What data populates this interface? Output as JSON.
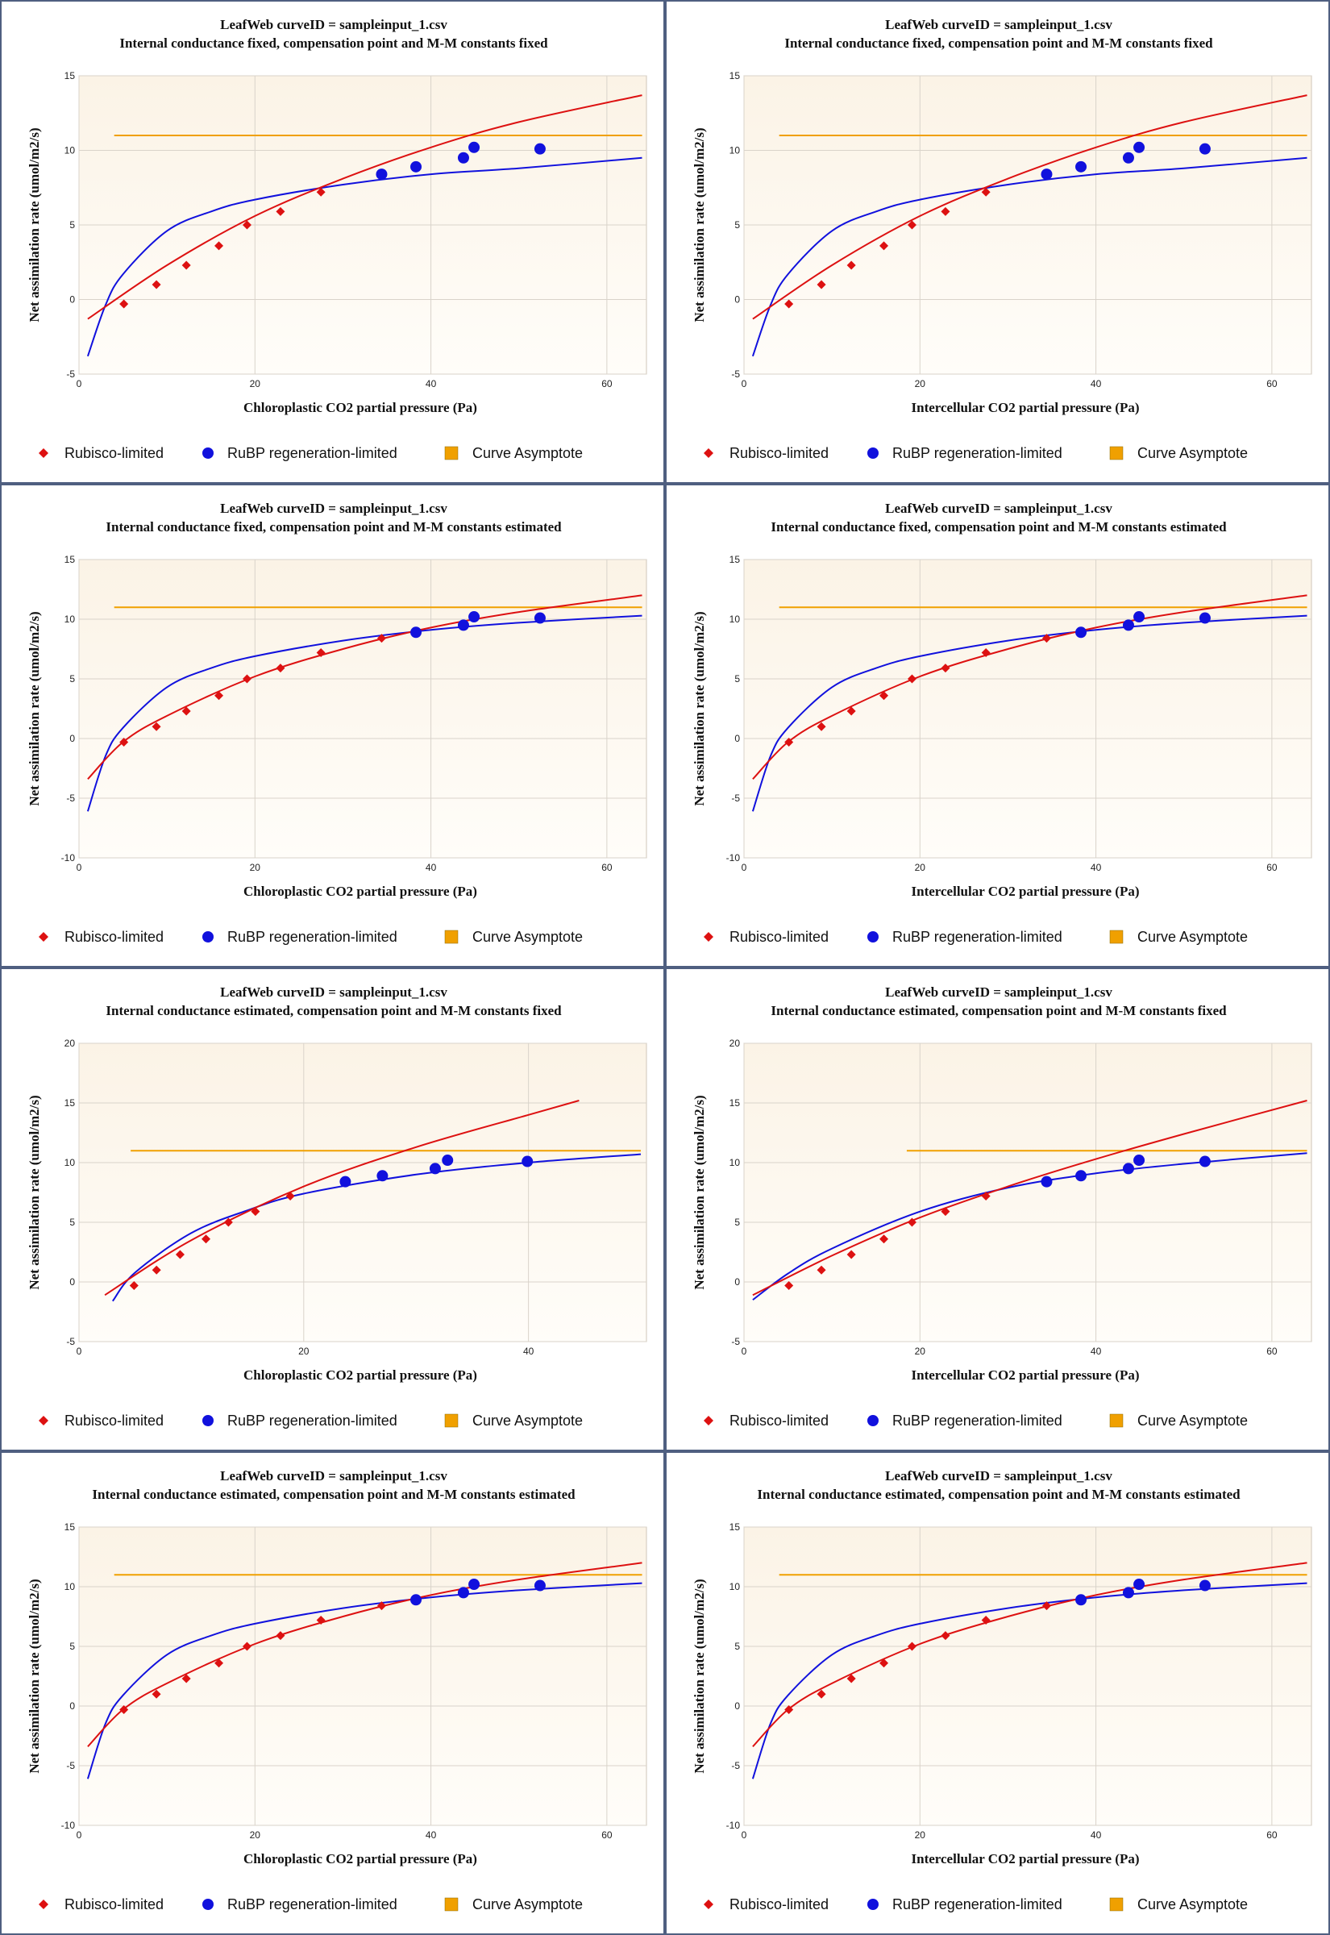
{
  "legend": {
    "rubisco": "Rubisco-limited",
    "rubp": "RuBP regeneration-limited",
    "asymptote": "Curve Asymptote"
  },
  "colors": {
    "rubisco": "#dd1111",
    "rubp": "#1111dd",
    "asymptote": "#f0a000",
    "plot_bg_top": "#fbf3e6",
    "plot_bg_bottom": "#fffdf9",
    "border": "#4f5f80"
  },
  "chart_data": [
    {
      "type": "scatter",
      "title": "LeafWeb curveID = sampleinput_1.csv",
      "subtitle": "Internal conductance fixed, compensation point and M-M constants fixed",
      "xlabel": "Chloroplastic CO2 partial pressure (Pa)",
      "ylabel": "Net assimilation rate (umol/m2/s)",
      "xlim": [
        0,
        64.5
      ],
      "ylim": [
        -5,
        15
      ],
      "xticks": [
        0,
        20,
        40,
        60
      ],
      "yticks": [
        -5,
        0,
        5,
        10,
        15
      ],
      "grid": true,
      "legend_position": "bottom",
      "series": [
        {
          "name": "Rubisco-limited",
          "x": [
            5.1,
            8.8,
            12.2,
            15.9,
            19.1,
            22.9,
            27.5
          ],
          "y": [
            -0.3,
            1.0,
            2.3,
            3.6,
            5.0,
            5.9,
            7.2
          ]
        },
        {
          "name": "RuBP regeneration-limited",
          "x": [
            34.4,
            38.3,
            43.7,
            44.9,
            52.4
          ],
          "y": [
            8.4,
            8.9,
            9.5,
            10.2,
            10.1
          ]
        }
      ],
      "rubisco_curve": {
        "x": [
          1,
          10,
          20,
          30,
          40,
          50,
          64
        ],
        "y": [
          -1.3,
          2.3,
          5.6,
          8.1,
          10.2,
          11.9,
          13.7
        ]
      },
      "rubp_curve": {
        "x": [
          1,
          3,
          5,
          10,
          15,
          20,
          30,
          40,
          50,
          64
        ],
        "y": [
          -3.8,
          -0.4,
          1.7,
          4.6,
          5.9,
          6.7,
          7.7,
          8.4,
          8.8,
          9.5
        ]
      },
      "asymptote": {
        "x": [
          4,
          64
        ],
        "y": 11
      }
    },
    {
      "type": "scatter",
      "title": "LeafWeb curveID = sampleinput_1.csv",
      "subtitle": "Internal conductance fixed, compensation point and M-M constants fixed",
      "xlabel": "Intercellular CO2 partial pressure (Pa)",
      "ylabel": "Net assimilation rate (umol/m2/s)",
      "xlim": [
        0,
        64.5
      ],
      "ylim": [
        -5,
        15
      ],
      "xticks": [
        0,
        20,
        40,
        60
      ],
      "yticks": [
        -5,
        0,
        5,
        10,
        15
      ],
      "grid": true,
      "legend_position": "bottom",
      "series": [
        {
          "name": "Rubisco-limited",
          "x": [
            5.1,
            8.8,
            12.2,
            15.9,
            19.1,
            22.9,
            27.5
          ],
          "y": [
            -0.3,
            1.0,
            2.3,
            3.6,
            5.0,
            5.9,
            7.2
          ]
        },
        {
          "name": "RuBP regeneration-limited",
          "x": [
            34.4,
            38.3,
            43.7,
            44.9,
            52.4
          ],
          "y": [
            8.4,
            8.9,
            9.5,
            10.2,
            10.1
          ]
        }
      ],
      "rubisco_curve": {
        "x": [
          1,
          10,
          20,
          30,
          40,
          50,
          64
        ],
        "y": [
          -1.3,
          2.3,
          5.6,
          8.1,
          10.2,
          11.9,
          13.7
        ]
      },
      "rubp_curve": {
        "x": [
          1,
          3,
          5,
          10,
          15,
          20,
          30,
          40,
          50,
          64
        ],
        "y": [
          -3.8,
          -0.4,
          1.7,
          4.6,
          5.9,
          6.7,
          7.7,
          8.4,
          8.8,
          9.5
        ]
      },
      "asymptote": {
        "x": [
          4,
          64
        ],
        "y": 11
      }
    },
    {
      "type": "scatter",
      "title": "LeafWeb curveID = sampleinput_1.csv",
      "subtitle": "Internal conductance fixed, compensation point and M-M constants estimated",
      "xlabel": "Chloroplastic CO2 partial pressure (Pa)",
      "ylabel": "Net assimilation rate (umol/m2/s)",
      "xlim": [
        0,
        64.5
      ],
      "ylim": [
        -10,
        15
      ],
      "xticks": [
        0,
        20,
        40,
        60
      ],
      "yticks": [
        -10,
        -5,
        0,
        5,
        10,
        15
      ],
      "grid": true,
      "legend_position": "bottom",
      "series": [
        {
          "name": "Rubisco-limited",
          "x": [
            5.1,
            8.8,
            12.2,
            15.9,
            19.1,
            22.9,
            27.5,
            34.4
          ],
          "y": [
            -0.3,
            1.0,
            2.3,
            3.6,
            5.0,
            5.9,
            7.2,
            8.4
          ]
        },
        {
          "name": "RuBP regeneration-limited",
          "x": [
            38.3,
            43.7,
            44.9,
            52.4
          ],
          "y": [
            8.9,
            9.5,
            10.2,
            10.1
          ]
        }
      ],
      "rubisco_curve": {
        "x": [
          1,
          5,
          10,
          20,
          30,
          40,
          50,
          64
        ],
        "y": [
          -3.4,
          -0.3,
          1.9,
          5.2,
          7.5,
          9.3,
          10.6,
          12.0
        ]
      },
      "rubp_curve": {
        "x": [
          1,
          3,
          5,
          10,
          15,
          20,
          30,
          40,
          50,
          64
        ],
        "y": [
          -6.1,
          -1.5,
          0.9,
          4.3,
          5.9,
          6.9,
          8.2,
          9.1,
          9.7,
          10.3
        ]
      },
      "asymptote": {
        "x": [
          4,
          64
        ],
        "y": 11
      }
    },
    {
      "type": "scatter",
      "title": "LeafWeb curveID = sampleinput_1.csv",
      "subtitle": "Internal conductance fixed, compensation point and M-M constants estimated",
      "xlabel": "Intercellular CO2 partial pressure (Pa)",
      "ylabel": "Net assimilation rate (umol/m2/s)",
      "xlim": [
        0,
        64.5
      ],
      "ylim": [
        -10,
        15
      ],
      "xticks": [
        0,
        20,
        40,
        60
      ],
      "yticks": [
        -10,
        -5,
        0,
        5,
        10,
        15
      ],
      "grid": true,
      "legend_position": "bottom",
      "series": [
        {
          "name": "Rubisco-limited",
          "x": [
            5.1,
            8.8,
            12.2,
            15.9,
            19.1,
            22.9,
            27.5,
            34.4
          ],
          "y": [
            -0.3,
            1.0,
            2.3,
            3.6,
            5.0,
            5.9,
            7.2,
            8.4
          ]
        },
        {
          "name": "RuBP regeneration-limited",
          "x": [
            38.3,
            43.7,
            44.9,
            52.4
          ],
          "y": [
            8.9,
            9.5,
            10.2,
            10.1
          ]
        }
      ],
      "rubisco_curve": {
        "x": [
          1,
          5,
          10,
          20,
          30,
          40,
          50,
          64
        ],
        "y": [
          -3.4,
          -0.3,
          1.9,
          5.2,
          7.5,
          9.3,
          10.6,
          12.0
        ]
      },
      "rubp_curve": {
        "x": [
          1,
          3,
          5,
          10,
          15,
          20,
          30,
          40,
          50,
          64
        ],
        "y": [
          -6.1,
          -1.5,
          0.9,
          4.3,
          5.9,
          6.9,
          8.2,
          9.1,
          9.7,
          10.3
        ]
      },
      "asymptote": {
        "x": [
          4,
          64
        ],
        "y": 11
      }
    },
    {
      "type": "scatter",
      "title": "LeafWeb curveID = sampleinput_1.csv",
      "subtitle": "Internal conductance estimated, compensation point and M-M constants fixed",
      "xlabel": "Chloroplastic CO2 partial pressure (Pa)",
      "ylabel": "Net assimilation rate (umol/m2/s)",
      "xlim": [
        0,
        50.5
      ],
      "ylim": [
        -5,
        20
      ],
      "xticks": [
        0,
        20,
        40
      ],
      "yticks": [
        -5,
        0,
        5,
        10,
        15,
        20
      ],
      "grid": true,
      "legend_position": "bottom",
      "series": [
        {
          "name": "Rubisco-limited",
          "x": [
            4.9,
            6.9,
            9.0,
            11.3,
            13.3,
            15.7,
            18.8
          ],
          "y": [
            -0.3,
            1.0,
            2.3,
            3.6,
            5.0,
            5.9,
            7.2
          ]
        },
        {
          "name": "RuBP regeneration-limited",
          "x": [
            23.7,
            27.0,
            31.7,
            32.8,
            39.9
          ],
          "y": [
            8.4,
            8.9,
            9.5,
            10.2,
            10.1
          ]
        }
      ],
      "rubisco_curve": {
        "x": [
          2.3,
          10,
          20,
          30,
          40,
          44.5
        ],
        "y": [
          -1.1,
          3.5,
          8.0,
          11.3,
          14.0,
          15.2
        ]
      },
      "rubp_curve": {
        "x": [
          3,
          5,
          10,
          15,
          20,
          30,
          40,
          50
        ],
        "y": [
          -1.6,
          0.8,
          4.1,
          6.0,
          7.4,
          9.0,
          10.0,
          10.7
        ]
      },
      "asymptote": {
        "x": [
          4.6,
          50
        ],
        "y": 11
      }
    },
    {
      "type": "scatter",
      "title": "LeafWeb curveID = sampleinput_1.csv",
      "subtitle": "Internal conductance estimated, compensation point and M-M constants fixed",
      "xlabel": "Intercellular CO2 partial pressure (Pa)",
      "ylabel": "Net assimilation rate (umol/m2/s)",
      "xlim": [
        0,
        64.5
      ],
      "ylim": [
        -5,
        20
      ],
      "xticks": [
        0,
        20,
        40,
        60
      ],
      "yticks": [
        -5,
        0,
        5,
        10,
        15,
        20
      ],
      "grid": true,
      "legend_position": "bottom",
      "series": [
        {
          "name": "Rubisco-limited",
          "x": [
            5.1,
            8.8,
            12.2,
            15.9,
            19.1,
            22.9,
            27.5
          ],
          "y": [
            -0.3,
            1.0,
            2.3,
            3.6,
            5.0,
            5.9,
            7.2
          ]
        },
        {
          "name": "RuBP regeneration-limited",
          "x": [
            34.4,
            38.3,
            43.7,
            44.9,
            52.4
          ],
          "y": [
            8.4,
            8.9,
            9.5,
            10.2,
            10.1
          ]
        }
      ],
      "rubisco_curve": {
        "x": [
          1,
          10,
          20,
          30,
          40,
          50,
          64
        ],
        "y": [
          -1.1,
          2.2,
          5.4,
          8.0,
          10.3,
          12.4,
          15.2
        ]
      },
      "rubp_curve": {
        "x": [
          1,
          5,
          10,
          20,
          30,
          40,
          50,
          64
        ],
        "y": [
          -1.5,
          0.7,
          2.8,
          5.9,
          7.9,
          9.1,
          9.9,
          10.8
        ]
      },
      "asymptote": {
        "x": [
          18.5,
          64
        ],
        "y": 11
      }
    },
    {
      "type": "scatter",
      "title": "LeafWeb curveID = sampleinput_1.csv",
      "subtitle": "Internal conductance estimated, compensation point and M-M constants estimated",
      "xlabel": "Chloroplastic CO2 partial pressure (Pa)",
      "ylabel": "Net assimilation rate (umol/m2/s)",
      "xlim": [
        0,
        64.5
      ],
      "ylim": [
        -10,
        15
      ],
      "xticks": [
        0,
        20,
        40,
        60
      ],
      "yticks": [
        -10,
        -5,
        0,
        5,
        10,
        15
      ],
      "grid": true,
      "legend_position": "bottom",
      "series": [
        {
          "name": "Rubisco-limited",
          "x": [
            5.1,
            8.8,
            12.2,
            15.9,
            19.1,
            22.9,
            27.5,
            34.4
          ],
          "y": [
            -0.3,
            1.0,
            2.3,
            3.6,
            5.0,
            5.9,
            7.2,
            8.4
          ]
        },
        {
          "name": "RuBP regeneration-limited",
          "x": [
            38.3,
            43.7,
            44.9,
            52.4
          ],
          "y": [
            8.9,
            9.5,
            10.2,
            10.1
          ]
        }
      ],
      "rubisco_curve": {
        "x": [
          1,
          5,
          10,
          20,
          30,
          40,
          50,
          64
        ],
        "y": [
          -3.4,
          -0.3,
          1.9,
          5.2,
          7.5,
          9.3,
          10.6,
          12.0
        ]
      },
      "rubp_curve": {
        "x": [
          1,
          3,
          5,
          10,
          15,
          20,
          30,
          40,
          50,
          64
        ],
        "y": [
          -6.1,
          -1.5,
          0.9,
          4.3,
          5.9,
          6.9,
          8.2,
          9.1,
          9.7,
          10.3
        ]
      },
      "asymptote": {
        "x": [
          4,
          64
        ],
        "y": 11
      }
    },
    {
      "type": "scatter",
      "title": "LeafWeb curveID = sampleinput_1.csv",
      "subtitle": "Internal conductance estimated, compensation point and M-M constants estimated",
      "xlabel": "Intercellular CO2 partial pressure (Pa)",
      "ylabel": "Net assimilation rate (umol/m2/s)",
      "xlim": [
        0,
        64.5
      ],
      "ylim": [
        -10,
        15
      ],
      "xticks": [
        0,
        20,
        40,
        60
      ],
      "yticks": [
        -10,
        -5,
        0,
        5,
        10,
        15
      ],
      "grid": true,
      "legend_position": "bottom",
      "series": [
        {
          "name": "Rubisco-limited",
          "x": [
            5.1,
            8.8,
            12.2,
            15.9,
            19.1,
            22.9,
            27.5,
            34.4
          ],
          "y": [
            -0.3,
            1.0,
            2.3,
            3.6,
            5.0,
            5.9,
            7.2,
            8.4
          ]
        },
        {
          "name": "RuBP regeneration-limited",
          "x": [
            38.3,
            43.7,
            44.9,
            52.4
          ],
          "y": [
            8.9,
            9.5,
            10.2,
            10.1
          ]
        }
      ],
      "rubisco_curve": {
        "x": [
          1,
          5,
          10,
          20,
          30,
          40,
          50,
          64
        ],
        "y": [
          -3.4,
          -0.3,
          1.9,
          5.2,
          7.5,
          9.3,
          10.6,
          12.0
        ]
      },
      "rubp_curve": {
        "x": [
          1,
          3,
          5,
          10,
          15,
          20,
          30,
          40,
          50,
          64
        ],
        "y": [
          -6.1,
          -1.5,
          0.9,
          4.3,
          5.9,
          6.9,
          8.2,
          9.1,
          9.7,
          10.3
        ]
      },
      "asymptote": {
        "x": [
          4,
          64
        ],
        "y": 11
      }
    }
  ]
}
